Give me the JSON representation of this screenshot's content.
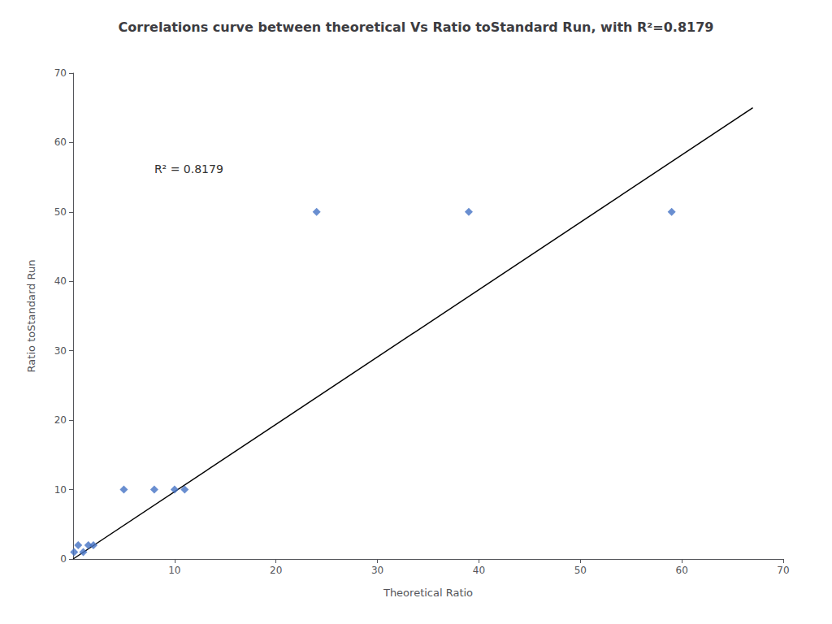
{
  "chart_data": {
    "type": "scatter",
    "title": "Correlations curve between theoretical Vs Ratio toStandard Run, with R²=0.8179",
    "xlabel": "Theoretical Ratio",
    "ylabel": "Ratio toStandard Run",
    "series": [
      {
        "type": "scatter",
        "marker": "diamond",
        "color": "#4472C4",
        "x": [
          0.1,
          0.5,
          1.0,
          1.5,
          2.0,
          5.0,
          8.0,
          10.0,
          11.0,
          24.0,
          39.0,
          59.0
        ],
        "values": [
          1.0,
          2.0,
          1.0,
          2.0,
          2.0,
          10.0,
          10.0,
          10.0,
          10.0,
          50.0,
          50.0,
          50.0
        ]
      },
      {
        "type": "line",
        "color": "#000000",
        "x": [
          0,
          67
        ],
        "values": [
          0,
          65
        ]
      }
    ],
    "annotations": [
      {
        "text": "R² = 0.8179",
        "x": 8,
        "y": 57
      }
    ],
    "xlim": [
      0,
      70
    ],
    "ylim": [
      0,
      70
    ],
    "xticks": [
      10,
      20,
      30,
      40,
      50,
      60,
      70
    ],
    "yticks": [
      0,
      10,
      20,
      30,
      40,
      50,
      60,
      70
    ],
    "grid": false
  }
}
